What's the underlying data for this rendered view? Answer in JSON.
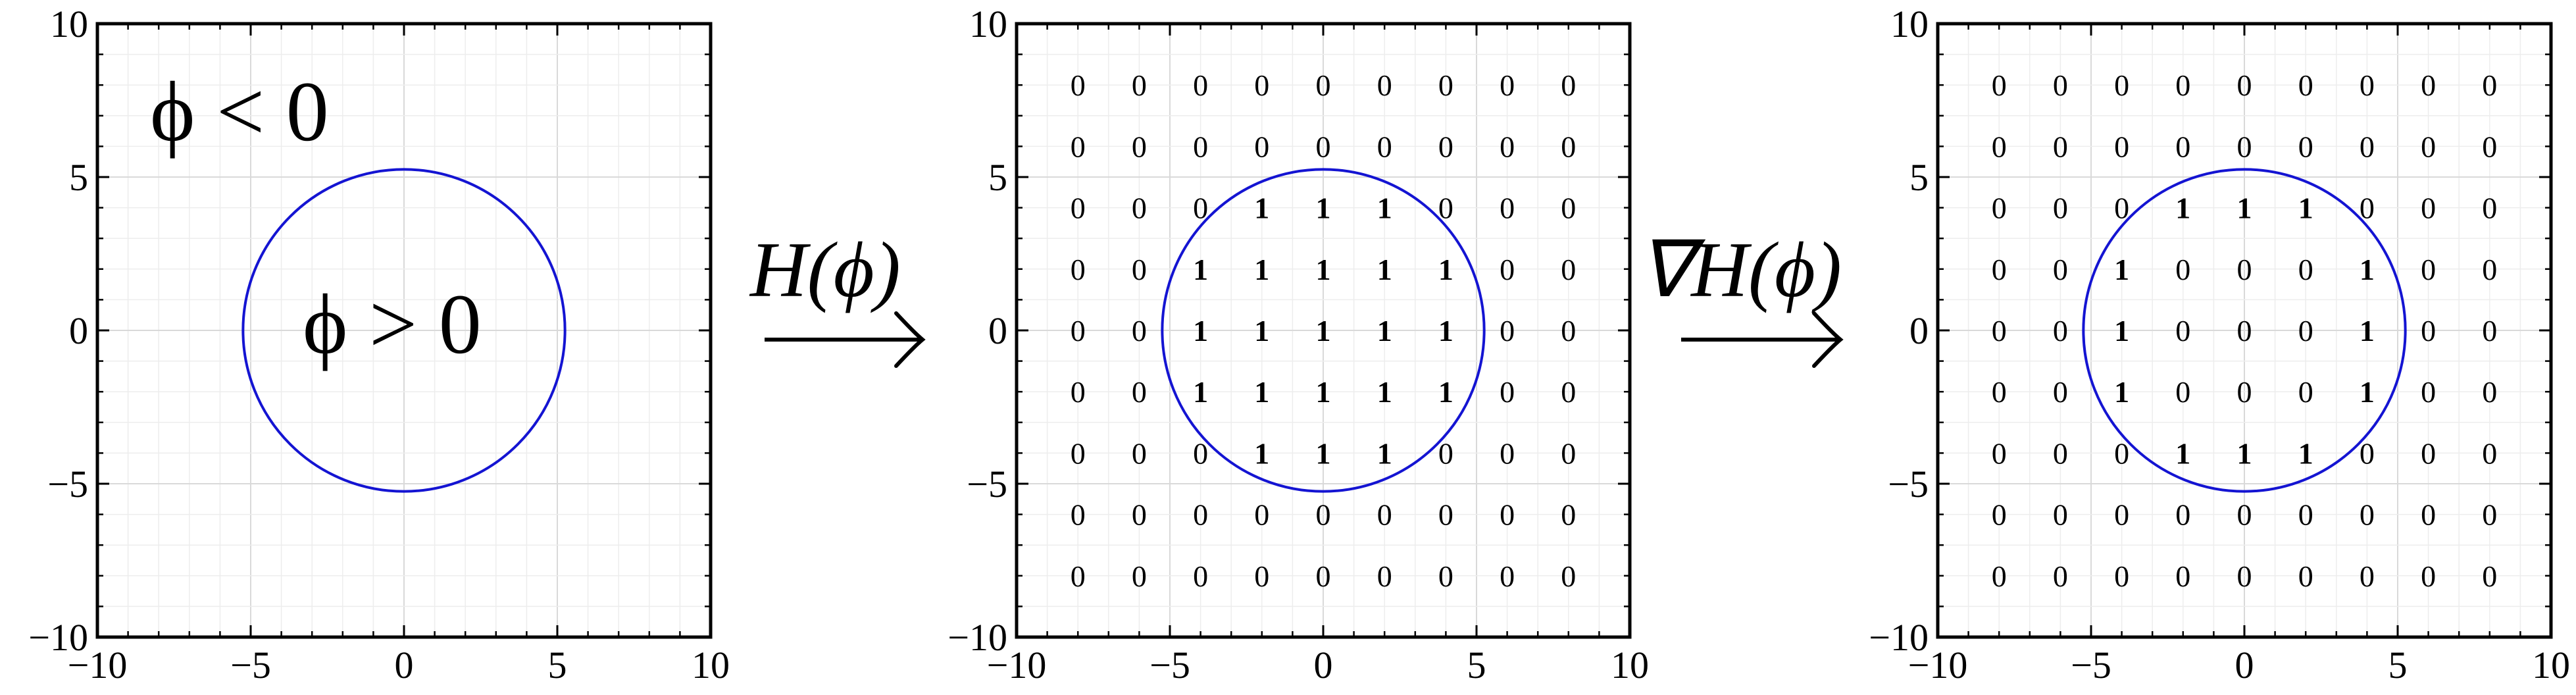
{
  "panels": [
    {
      "id": "phi",
      "xticks": [
        -10,
        -5,
        0,
        5,
        10
      ],
      "yticks": [
        -10,
        -5,
        0,
        5,
        10
      ],
      "xlim": [
        -10,
        10
      ],
      "ylim": [
        -10,
        10
      ],
      "circle_radius": 5.25,
      "circle_color": "#1414d2",
      "grid": true,
      "matrix": []
    },
    {
      "id": "heaviside",
      "xticks": [
        -10,
        -5,
        0,
        5,
        10
      ],
      "yticks": [
        -10,
        -5,
        0,
        5,
        10
      ],
      "xlim": [
        -10,
        10
      ],
      "ylim": [
        -10,
        10
      ],
      "circle_radius": 5.25,
      "circle_color": "#1414d2",
      "grid": true,
      "matrix": [
        [
          0,
          0,
          0,
          0,
          0,
          0,
          0,
          0,
          0
        ],
        [
          0,
          0,
          0,
          0,
          0,
          0,
          0,
          0,
          0
        ],
        [
          0,
          0,
          0,
          1,
          1,
          1,
          0,
          0,
          0
        ],
        [
          0,
          0,
          1,
          1,
          1,
          1,
          1,
          0,
          0
        ],
        [
          0,
          0,
          1,
          1,
          1,
          1,
          1,
          0,
          0
        ],
        [
          0,
          0,
          1,
          1,
          1,
          1,
          1,
          0,
          0
        ],
        [
          0,
          0,
          0,
          1,
          1,
          1,
          0,
          0,
          0
        ],
        [
          0,
          0,
          0,
          0,
          0,
          0,
          0,
          0,
          0
        ],
        [
          0,
          0,
          0,
          0,
          0,
          0,
          0,
          0,
          0
        ]
      ]
    },
    {
      "id": "gradient",
      "xticks": [
        -10,
        -5,
        0,
        5,
        10
      ],
      "yticks": [
        -10,
        -5,
        0,
        5,
        10
      ],
      "xlim": [
        -10,
        10
      ],
      "ylim": [
        -10,
        10
      ],
      "circle_radius": 5.25,
      "circle_color": "#1414d2",
      "grid": true,
      "matrix": [
        [
          0,
          0,
          0,
          0,
          0,
          0,
          0,
          0,
          0
        ],
        [
          0,
          0,
          0,
          0,
          0,
          0,
          0,
          0,
          0
        ],
        [
          0,
          0,
          0,
          1,
          1,
          1,
          0,
          0,
          0
        ],
        [
          0,
          0,
          1,
          0,
          0,
          0,
          1,
          0,
          0
        ],
        [
          0,
          0,
          1,
          0,
          0,
          0,
          1,
          0,
          0
        ],
        [
          0,
          0,
          1,
          0,
          0,
          0,
          1,
          0,
          0
        ],
        [
          0,
          0,
          0,
          1,
          1,
          1,
          0,
          0,
          0
        ],
        [
          0,
          0,
          0,
          0,
          0,
          0,
          0,
          0,
          0
        ],
        [
          0,
          0,
          0,
          0,
          0,
          0,
          0,
          0,
          0
        ]
      ]
    }
  ],
  "matrix_coords": [
    -8,
    -6,
    -4,
    -2,
    0,
    2,
    4,
    6,
    8
  ],
  "labels": {
    "region_outside": "ϕ < 0",
    "region_inside": "ϕ > 0",
    "arrow1": "H(ϕ)",
    "arrow2": "∇H(ϕ)"
  }
}
